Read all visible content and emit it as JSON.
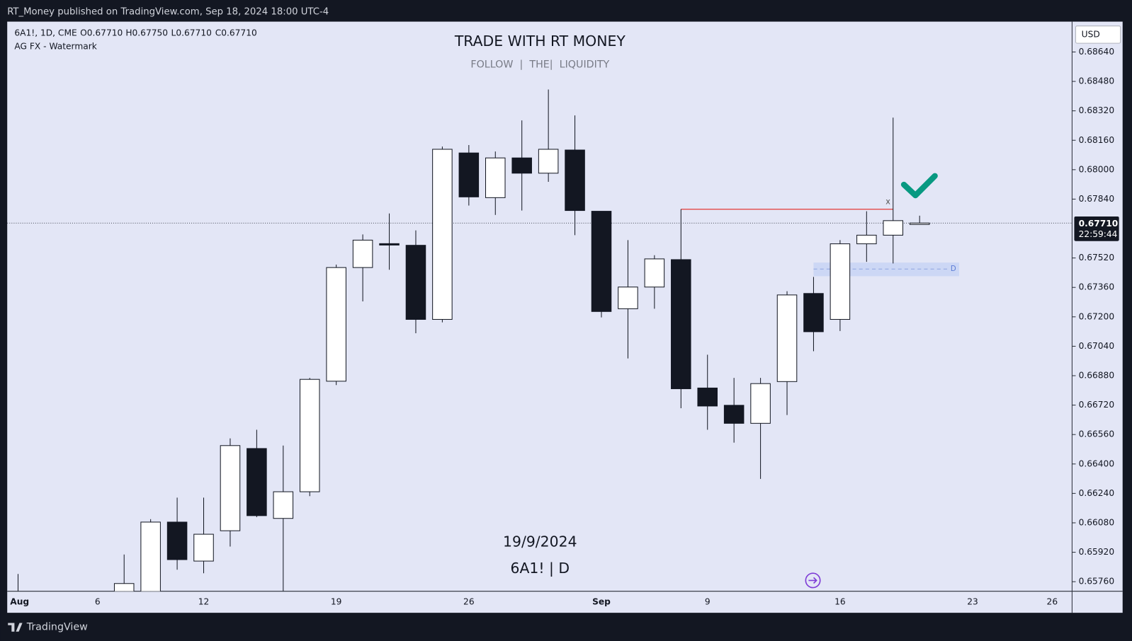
{
  "header": {
    "text": "RT_Money published on TradingView.com, Sep 18, 2024 18:00 UTC-4"
  },
  "footer": {
    "text": "TradingView"
  },
  "legend": {
    "symbol": "6A1!, 1D, CME",
    "ohlc": [
      "O0.67710",
      "H0.67750",
      "L0.67710",
      "C0.67710"
    ],
    "indicator": "AG FX - Watermark"
  },
  "watermark": {
    "title": "TRADE WITH RT MONEY",
    "subtitle": "FOLLOW  |  THE|  LIQUIDITY",
    "date": "19/9/2024",
    "symbol": "6A1! | D"
  },
  "chart_data": {
    "type": "candlestick",
    "currency": "USD",
    "categories": [
      "Aug",
      null,
      null,
      "6",
      null,
      null,
      null,
      "12",
      null,
      null,
      null,
      null,
      "19",
      null,
      null,
      null,
      null,
      "26",
      null,
      null,
      null,
      null,
      "Sep",
      null,
      null,
      null,
      "9",
      null,
      null,
      null,
      null,
      "16",
      null,
      null,
      null,
      null,
      "23",
      null,
      null,
      "26"
    ],
    "open": [
      0.6568,
      null,
      null,
      null,
      0.657,
      0.6568,
      0.66084,
      0.65872,
      0.66037,
      0.66484,
      0.66104,
      0.66249,
      0.6685,
      0.67468,
      0.67598,
      0.67589,
      0.67186,
      0.68091,
      0.67848,
      0.68064,
      0.67981,
      0.68107,
      0.67774,
      0.67244,
      0.67362,
      0.67511,
      0.66813,
      0.66719,
      0.66621,
      0.66848,
      0.67327,
      0.67186,
      0.67597,
      0.67644,
      0.6771,
      null,
      null,
      null,
      null,
      null
    ],
    "high": [
      0.65802,
      null,
      null,
      null,
      0.65908,
      0.661,
      0.66217,
      0.66217,
      0.66539,
      0.66586,
      0.665,
      0.66868,
      0.67484,
      0.67648,
      0.67762,
      0.6767,
      0.68126,
      0.68134,
      0.68099,
      0.68268,
      0.68436,
      0.68295,
      0.67774,
      0.67617,
      0.67535,
      0.67785,
      0.66994,
      0.66868,
      0.66868,
      0.67339,
      0.67417,
      0.67617,
      0.67774,
      0.68283,
      0.6775,
      null,
      null,
      null,
      null,
      null
    ],
    "low": [
      0.6558,
      null,
      null,
      null,
      0.6565,
      0.6562,
      0.65825,
      0.65806,
      0.65951,
      0.66111,
      0.657,
      0.66225,
      0.66829,
      0.67284,
      0.67456,
      0.67111,
      0.6717,
      0.67805,
      0.67754,
      0.67778,
      0.67934,
      0.67644,
      0.67197,
      0.66974,
      0.67244,
      0.66703,
      0.66586,
      0.66516,
      0.66319,
      0.66666,
      0.67013,
      0.67123,
      0.67499,
      0.6749,
      0.6771,
      null,
      null,
      null,
      null,
      null
    ],
    "close": [
      0.6565,
      null,
      null,
      null,
      0.6575,
      0.66084,
      0.6588,
      0.66018,
      0.665,
      0.66119,
      0.66249,
      0.6686,
      0.67468,
      0.67617,
      0.67593,
      0.67186,
      0.68111,
      0.67852,
      0.68064,
      0.67981,
      0.68111,
      0.67778,
      0.67229,
      0.67362,
      0.67515,
      0.66809,
      0.66715,
      0.66621,
      0.66837,
      0.67319,
      0.67119,
      0.67597,
      0.67644,
      0.67723,
      0.6771,
      null,
      null,
      null,
      null,
      null
    ],
    "up_color": "#ffffff",
    "down_color": "#131722",
    "ylim": [
      0.65708,
      0.68805
    ],
    "yticks": [
      {
        "value": 0.6864,
        "label": "0.68640"
      },
      {
        "value": 0.6848,
        "label": "0.68480"
      },
      {
        "value": 0.6832,
        "label": "0.68320"
      },
      {
        "value": 0.6816,
        "label": "0.68160"
      },
      {
        "value": 0.68,
        "label": "0.68000"
      },
      {
        "value": 0.6784,
        "label": "0.67840"
      },
      {
        "value": 0.6752,
        "label": "0.67520"
      },
      {
        "value": 0.6736,
        "label": "0.67360"
      },
      {
        "value": 0.672,
        "label": "0.67200"
      },
      {
        "value": 0.6704,
        "label": "0.67040"
      },
      {
        "value": 0.6688,
        "label": "0.66880"
      },
      {
        "value": 0.6672,
        "label": "0.66720"
      },
      {
        "value": 0.6656,
        "label": "0.66560"
      },
      {
        "value": 0.664,
        "label": "0.66400"
      },
      {
        "value": 0.6624,
        "label": "0.66240"
      },
      {
        "value": 0.6608,
        "label": "0.66080"
      },
      {
        "value": 0.6592,
        "label": "0.65920"
      },
      {
        "value": 0.6576,
        "label": "0.65760"
      }
    ],
    "last_price": {
      "value": 0.6771,
      "label": "0.67710",
      "countdown": "22:59:44"
    },
    "level_line": {
      "value": 0.67785,
      "label": "x",
      "color": "#e53935"
    },
    "zone": {
      "top": 0.67495,
      "bottom": 0.67421,
      "mid": 0.6746,
      "label": "D"
    }
  }
}
